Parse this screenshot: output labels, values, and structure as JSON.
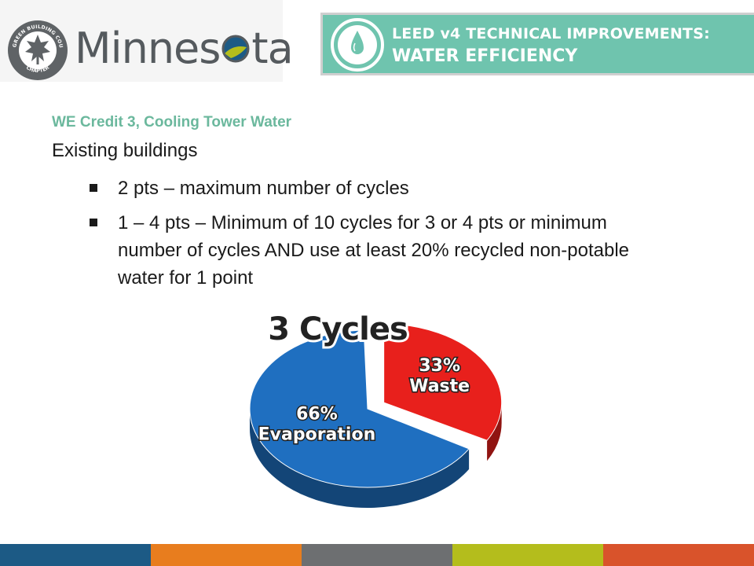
{
  "logo": {
    "seal_text": "U.S. GREEN BUILDING COUNCIL",
    "seal_bottom": "CHAPTER",
    "wordmark_a": "Minnes",
    "wordmark_b": "ta"
  },
  "banner": {
    "line1": "LEED v4 TECHNICAL IMPROVEMENTS:",
    "line2": "WATER EFFICIENCY",
    "icon": "water-drop-icon",
    "bg_color": "#6fc4ae"
  },
  "content": {
    "subtitle": "WE Credit 3, Cooling Tower Water",
    "heading": "Existing buildings",
    "bullets": [
      "2 pts – maximum number of cycles",
      "1 – 4 pts – Minimum of 10 cycles for 3 or 4 pts or minimum number of cycles AND use at least 20% recycled non-potable water for 1 point"
    ]
  },
  "chart_data": {
    "type": "pie",
    "title": "3 Cycles",
    "slices": [
      {
        "label": "Waste",
        "percent_label": "33%",
        "value": 33,
        "color": "#e8201c",
        "exploded": true
      },
      {
        "label": "Evaporation",
        "percent_label": "66%",
        "value": 66,
        "color": "#1f6fc0",
        "exploded": false
      }
    ]
  },
  "footer": {
    "colors": [
      "#1c5a85",
      "#e87d1e",
      "#6d6f71",
      "#b4bd1c",
      "#d9532b"
    ]
  }
}
